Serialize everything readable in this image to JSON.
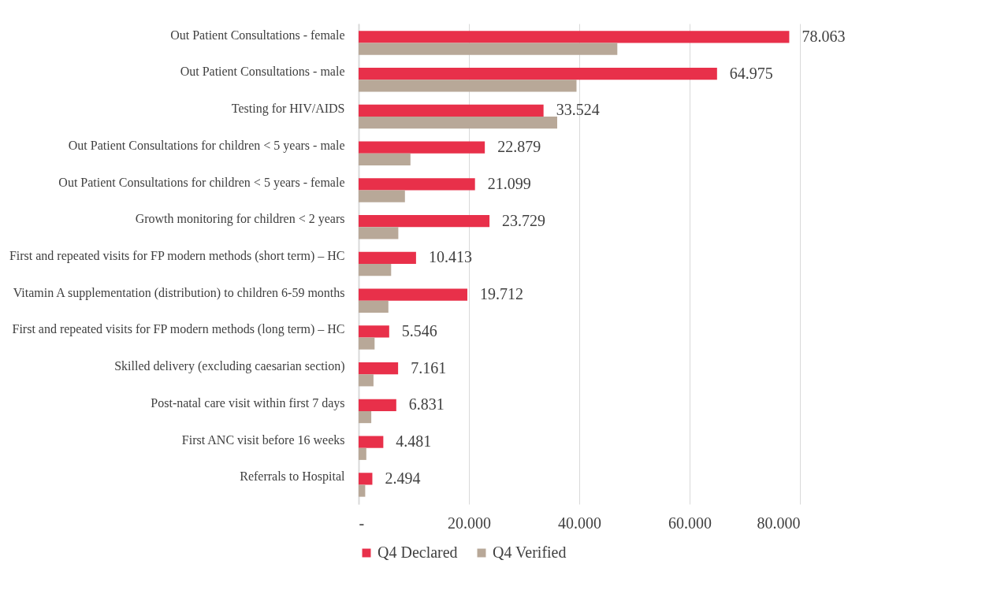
{
  "chart_data": {
    "type": "bar",
    "orientation": "horizontal",
    "categories": [
      "Out Patient Consultations - female",
      "Out Patient Consultations - male",
      "Testing for HIV/AIDS",
      "Out Patient Consultations for children < 5 years - male",
      "Out Patient Consultations for children < 5 years - female",
      "Growth monitoring for children < 2 years",
      "First and repeated visits for FP modern methods (short term) – HC",
      "Vitamin A supplementation (distribution) to children 6-59 months",
      "First and repeated visits for FP modern methods (long term) – HC",
      "Skilled delivery (excluding caesarian section)",
      "Post-natal care visit within first 7 days",
      "First ANC visit before 16 weeks",
      "Referrals to Hospital"
    ],
    "series": [
      {
        "name": "Q4 Declared",
        "color": "#e8304a",
        "values": [
          78063,
          64975,
          33524,
          22879,
          21099,
          23729,
          10413,
          19712,
          5546,
          7161,
          6831,
          4481,
          2494
        ],
        "value_labels": [
          "78.063",
          "64.975",
          "33.524",
          "22.879",
          "21.099",
          "23.729",
          "10.413",
          "19.712",
          "5.546",
          "7.161",
          "6.831",
          "4.481",
          "2.494"
        ]
      },
      {
        "name": "Q4 Verified",
        "color": "#b8a898",
        "values": [
          46900,
          39500,
          36000,
          9400,
          8400,
          7200,
          5900,
          5400,
          2900,
          2700,
          2300,
          1400,
          1200
        ]
      }
    ],
    "xlim": [
      0,
      80000
    ],
    "xticks": [
      {
        "value": 0,
        "label": "-"
      },
      {
        "value": 20000,
        "label": "20.000"
      },
      {
        "value": 40000,
        "label": "40.000"
      },
      {
        "value": 60000,
        "label": "60.000"
      },
      {
        "value": 80000,
        "label": "80.000"
      }
    ],
    "grid": "x",
    "legend": "bottom"
  }
}
